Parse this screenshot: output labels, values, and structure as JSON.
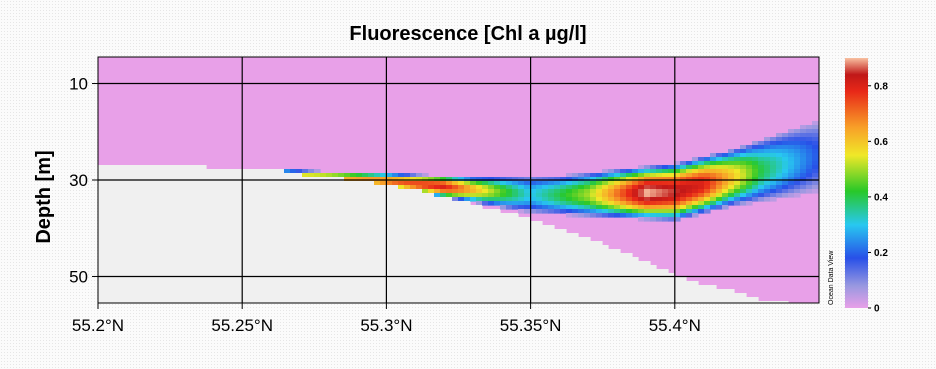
{
  "chart_data": {
    "type": "heatmap",
    "title": "Fluorescence [Chl a µg/l]",
    "ylabel": "Depth [m]",
    "xlabel": "",
    "xlim": [
      55.2,
      55.45
    ],
    "ylim": [
      55.5,
      4.5
    ],
    "x_ticks": [
      {
        "value": 55.2,
        "label": "55.2°N"
      },
      {
        "value": 55.25,
        "label": "55.25°N"
      },
      {
        "value": 55.3,
        "label": "55.3°N"
      },
      {
        "value": 55.35,
        "label": "55.35°N"
      },
      {
        "value": 55.4,
        "label": "55.4°N"
      }
    ],
    "y_ticks": [
      {
        "value": 10,
        "label": "10"
      },
      {
        "value": 30,
        "label": "30"
      },
      {
        "value": 50,
        "label": "50"
      }
    ],
    "grid": true,
    "colorbar": {
      "range": [
        0,
        0.9
      ],
      "ticks": [
        {
          "value": 0,
          "label": "0"
        },
        {
          "value": 0.2,
          "label": "0.2"
        },
        {
          "value": 0.4,
          "label": "0.4"
        },
        {
          "value": 0.6,
          "label": "0.6"
        },
        {
          "value": 0.8,
          "label": "0.8"
        }
      ],
      "stops": [
        {
          "value": 0,
          "color": "#e8a0e8"
        },
        {
          "value": 0.08,
          "color": "#9898e0"
        },
        {
          "value": 0.18,
          "color": "#2850e8"
        },
        {
          "value": 0.3,
          "color": "#28c8f0"
        },
        {
          "value": 0.42,
          "color": "#28c828"
        },
        {
          "value": 0.55,
          "color": "#f0e828"
        },
        {
          "value": 0.65,
          "color": "#f8a028"
        },
        {
          "value": 0.78,
          "color": "#e82818"
        },
        {
          "value": 0.84,
          "color": "#c01818"
        },
        {
          "value": 0.9,
          "color": "#f8c0a0"
        }
      ],
      "watermark": "Ocean Data View"
    },
    "background_value": 0,
    "seafloor_color": "#f0f0f0",
    "bottom_depth": [
      {
        "lat": 55.2,
        "depth": 27
      },
      {
        "lat": 55.26,
        "depth": 27.5
      },
      {
        "lat": 55.27,
        "depth": 29
      },
      {
        "lat": 55.29,
        "depth": 30
      },
      {
        "lat": 55.31,
        "depth": 32
      },
      {
        "lat": 55.33,
        "depth": 35
      },
      {
        "lat": 55.35,
        "depth": 38
      },
      {
        "lat": 55.37,
        "depth": 42
      },
      {
        "lat": 55.39,
        "depth": 47
      },
      {
        "lat": 55.405,
        "depth": 51
      },
      {
        "lat": 55.42,
        "depth": 53
      },
      {
        "lat": 55.43,
        "depth": 55
      },
      {
        "lat": 55.45,
        "depth": 56
      }
    ],
    "layer": {
      "top_depth": [
        {
          "lat": 55.26,
          "depth": 28
        },
        {
          "lat": 55.3,
          "depth": 29
        },
        {
          "lat": 55.33,
          "depth": 30
        },
        {
          "lat": 55.36,
          "depth": 30
        },
        {
          "lat": 55.38,
          "depth": 29
        },
        {
          "lat": 55.4,
          "depth": 28
        },
        {
          "lat": 55.42,
          "depth": 25
        },
        {
          "lat": 55.435,
          "depth": 22
        },
        {
          "lat": 55.45,
          "depth": 19
        }
      ],
      "bottom_depth": [
        {
          "lat": 55.26,
          "depth": 29.5
        },
        {
          "lat": 55.3,
          "depth": 31.5
        },
        {
          "lat": 55.33,
          "depth": 34
        },
        {
          "lat": 55.35,
          "depth": 36
        },
        {
          "lat": 55.37,
          "depth": 36.5
        },
        {
          "lat": 55.4,
          "depth": 37
        },
        {
          "lat": 55.42,
          "depth": 34
        },
        {
          "lat": 55.44,
          "depth": 32
        },
        {
          "lat": 55.45,
          "depth": 31
        }
      ],
      "peak_value": [
        {
          "lat": 55.26,
          "value": 0.5
        },
        {
          "lat": 55.28,
          "value": 0.6
        },
        {
          "lat": 55.3,
          "value": 0.7
        },
        {
          "lat": 55.32,
          "value": 0.8
        },
        {
          "lat": 55.34,
          "value": 0.45
        },
        {
          "lat": 55.35,
          "value": 0.3
        },
        {
          "lat": 55.37,
          "value": 0.5
        },
        {
          "lat": 55.39,
          "value": 0.9
        },
        {
          "lat": 55.41,
          "value": 0.8
        },
        {
          "lat": 55.43,
          "value": 0.4
        },
        {
          "lat": 55.45,
          "value": 0.18
        }
      ]
    }
  }
}
